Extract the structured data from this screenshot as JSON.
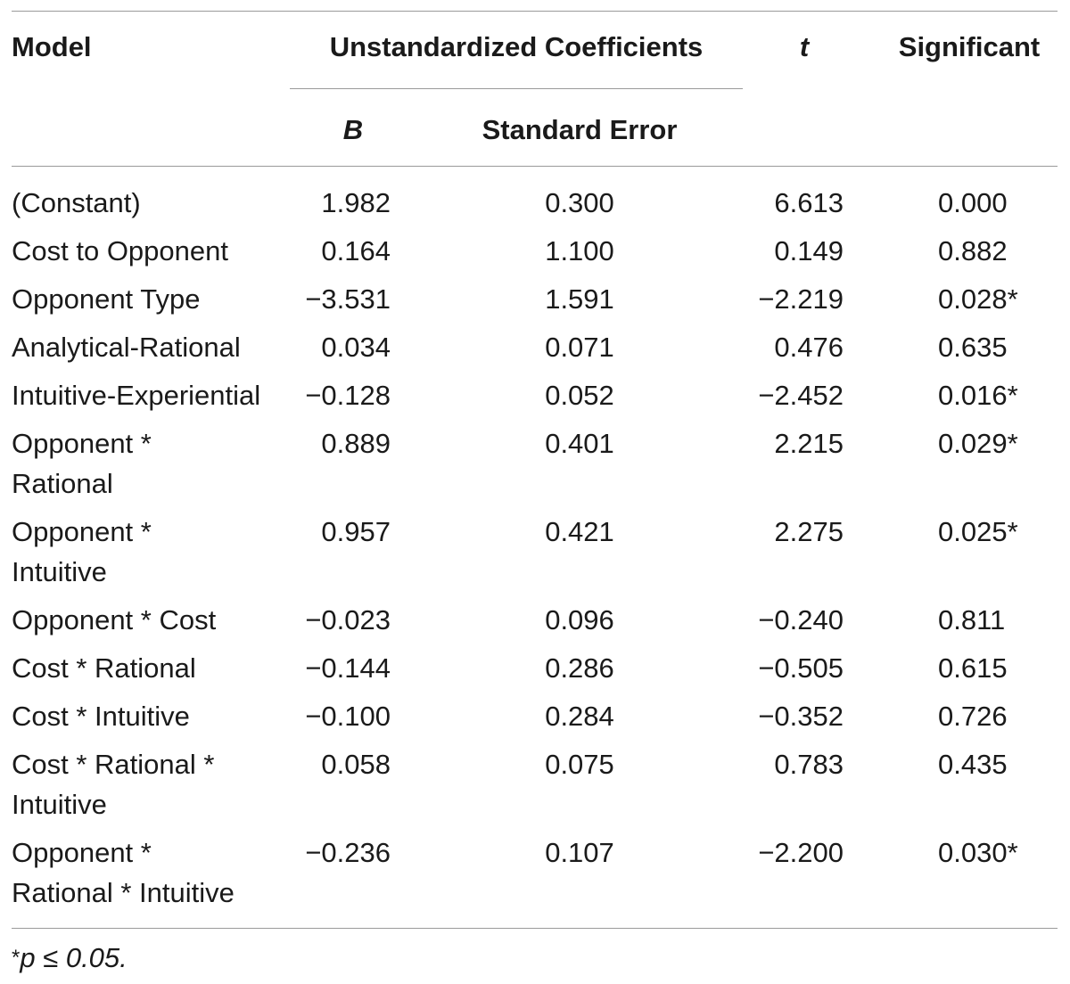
{
  "table": {
    "headers": {
      "model": "Model",
      "unstandardized": "Unstandardized Coefficients",
      "t": "t",
      "significant": "Significant",
      "b": "B",
      "standard_error": "Standard Error"
    },
    "rows": [
      {
        "model": [
          "(Constant)"
        ],
        "b": "1.982",
        "se": "0.300",
        "t": "6.613",
        "sig": "0.000"
      },
      {
        "model": [
          "Cost to Opponent"
        ],
        "b": "0.164",
        "se": "1.100",
        "t": "0.149",
        "sig": "0.882"
      },
      {
        "model": [
          "Opponent Type"
        ],
        "b": "−3.531",
        "se": "1.591",
        "t": "−2.219",
        "sig": "0.028*"
      },
      {
        "model": [
          "Analytical-Rational"
        ],
        "b": "0.034",
        "se": "0.071",
        "t": "0.476",
        "sig": "0.635"
      },
      {
        "model": [
          "Intuitive-Experiential"
        ],
        "b": "−0.128",
        "se": "0.052",
        "t": "−2.452",
        "sig": "0.016*"
      },
      {
        "model": [
          "Opponent *",
          "Rational"
        ],
        "b": "0.889",
        "se": "0.401",
        "t": "2.215",
        "sig": "0.029*"
      },
      {
        "model": [
          "Opponent *",
          "Intuitive"
        ],
        "b": "0.957",
        "se": "0.421",
        "t": "2.275",
        "sig": "0.025*"
      },
      {
        "model": [
          "Opponent * Cost"
        ],
        "b": "−0.023",
        "se": "0.096",
        "t": "−0.240",
        "sig": "0.811"
      },
      {
        "model": [
          "Cost * Rational"
        ],
        "b": "−0.144",
        "se": "0.286",
        "t": "−0.505",
        "sig": "0.615"
      },
      {
        "model": [
          "Cost * Intuitive"
        ],
        "b": "−0.100",
        "se": "0.284",
        "t": "−0.352",
        "sig": "0.726"
      },
      {
        "model": [
          "Cost * Rational *",
          "Intuitive"
        ],
        "b": "0.058",
        "se": "0.075",
        "t": "0.783",
        "sig": "0.435"
      },
      {
        "model": [
          "Opponent *",
          "Rational * Intuitive"
        ],
        "b": "−0.236",
        "se": "0.107",
        "t": "−2.200",
        "sig": "0.030*"
      }
    ],
    "footnote": {
      "star": "*",
      "text": "p ≤ 0.05."
    }
  }
}
